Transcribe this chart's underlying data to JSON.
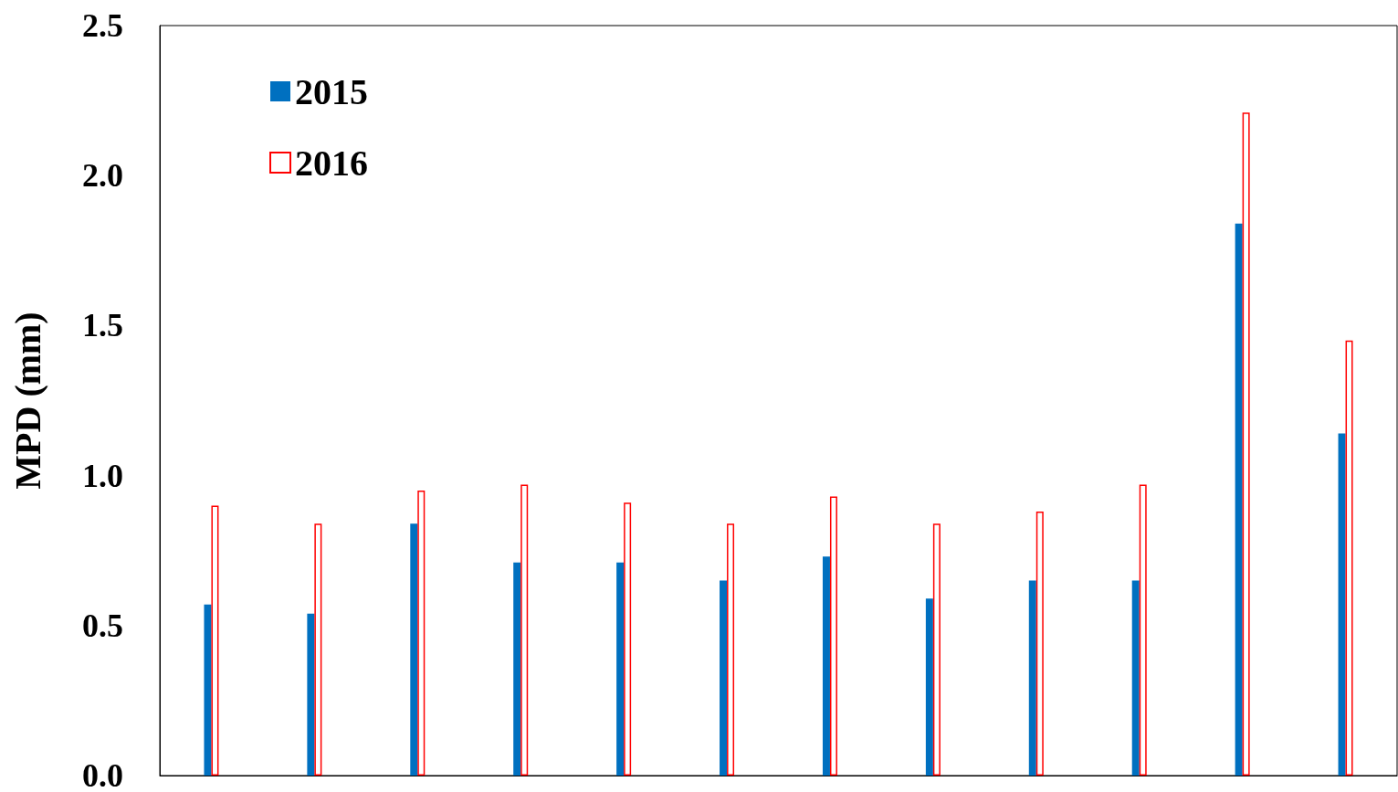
{
  "chart_data": {
    "type": "bar",
    "ylabel": "MPD (mm)",
    "categories": [
      null,
      null,
      null,
      null,
      null,
      null,
      null,
      null,
      null,
      null,
      null,
      null
    ],
    "series": [
      {
        "name": "2015",
        "color": "#0070c0",
        "values": [
          0.57,
          0.54,
          0.84,
          0.71,
          0.71,
          0.65,
          0.73,
          0.59,
          0.65,
          0.65,
          1.84,
          1.14
        ]
      },
      {
        "name": "2016",
        "color": "#ff0000",
        "values": [
          0.9,
          0.84,
          0.95,
          0.97,
          0.91,
          0.84,
          0.93,
          0.84,
          0.88,
          0.97,
          2.21,
          1.45
        ]
      }
    ],
    "ylim": [
      0,
      2.5
    ],
    "yticks": [
      {
        "value": 0,
        "label": "0.0"
      },
      {
        "value": 0.5,
        "label": "0.5"
      },
      {
        "value": 1,
        "label": "1.0"
      },
      {
        "value": 1.5,
        "label": "1.5"
      },
      {
        "value": 2,
        "label": "2.0"
      },
      {
        "value": 2.5,
        "label": "2.5"
      }
    ],
    "tick_labels": "y",
    "grid": false,
    "legend": "top left"
  }
}
